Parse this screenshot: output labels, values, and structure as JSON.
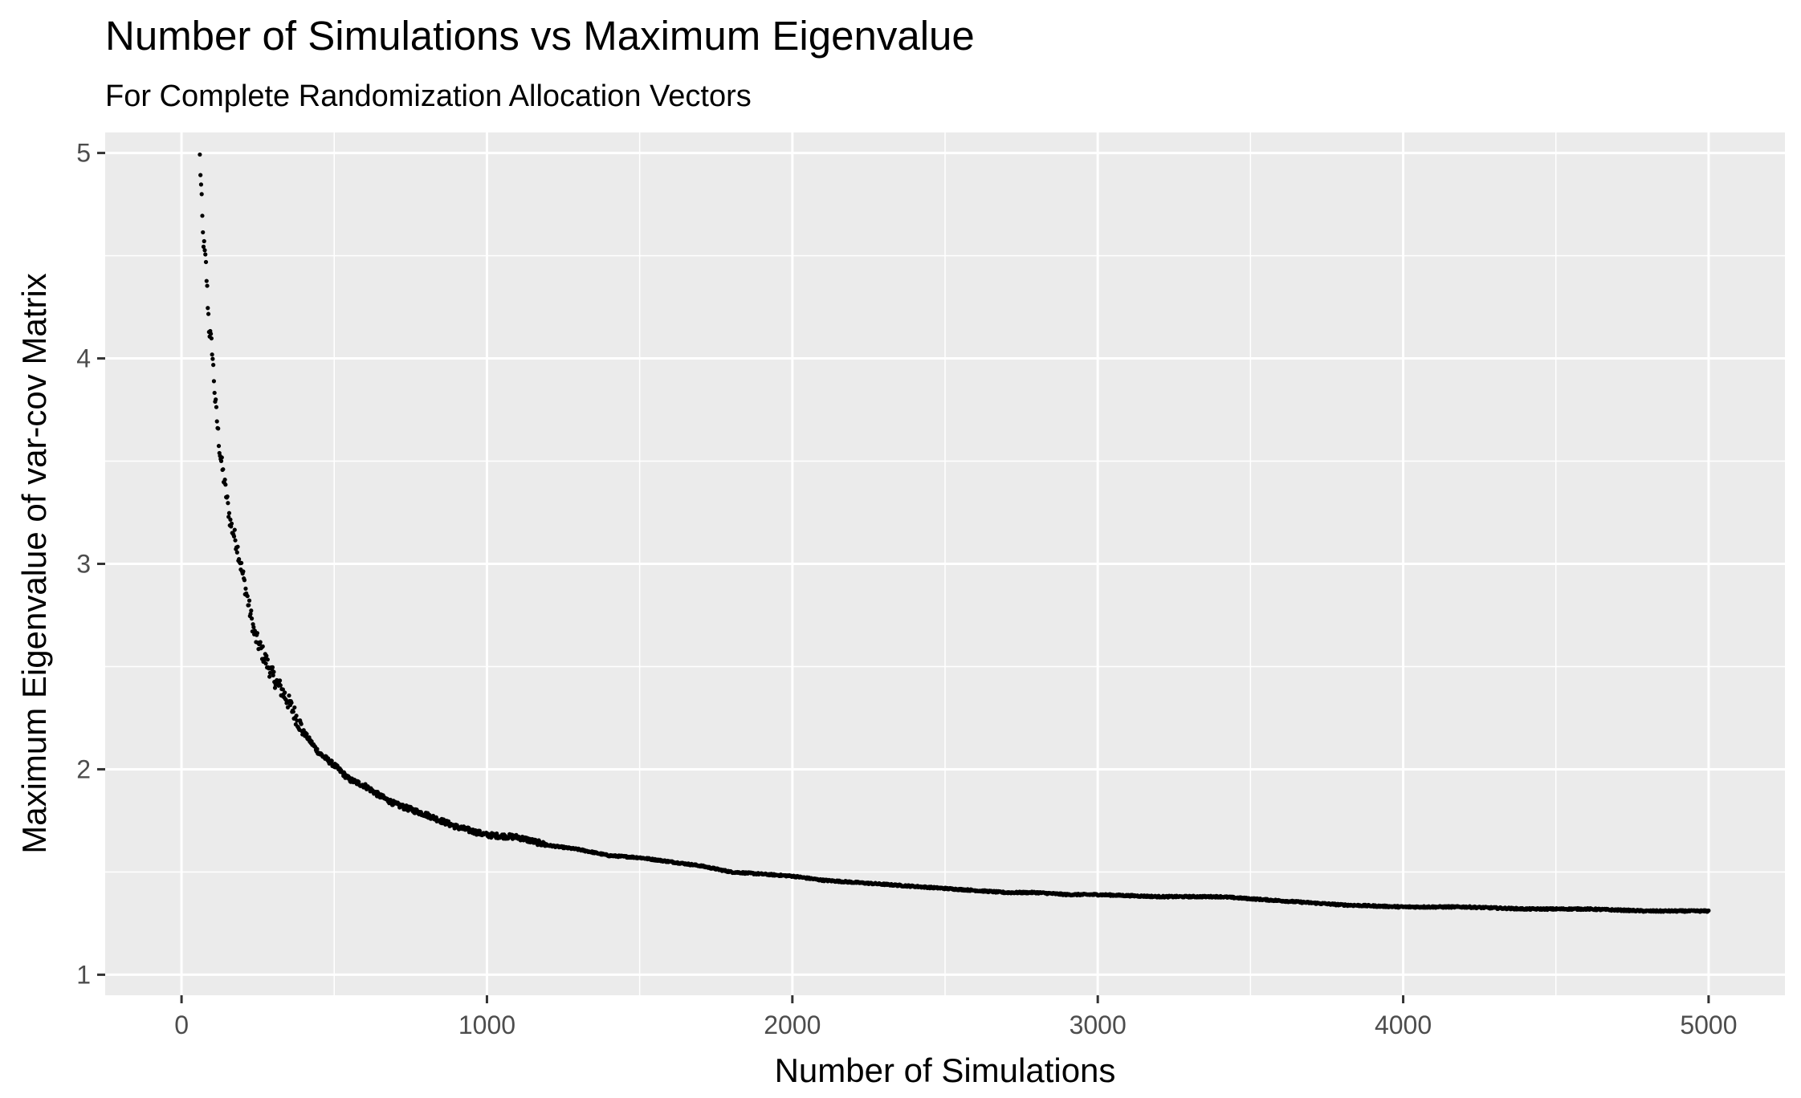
{
  "chart_data": {
    "type": "scatter",
    "title": "Number of Simulations vs Maximum Eigenvalue",
    "subtitle": "For Complete Randomization Allocation Vectors",
    "xlabel": "Number of Simulations",
    "ylabel": "Maximum Eigenvalue of var-cov Matrix",
    "xlim": [
      -250,
      5250
    ],
    "ylim": [
      0.9,
      5.1
    ],
    "x_ticks": [
      0,
      1000,
      2000,
      3000,
      4000,
      5000
    ],
    "x_tick_labels": [
      "0",
      "1000",
      "2000",
      "3000",
      "4000",
      "5000"
    ],
    "y_ticks": [
      1,
      2,
      3,
      4,
      5
    ],
    "y_tick_labels": [
      "1",
      "2",
      "3",
      "4",
      "5"
    ],
    "grid": true,
    "background": "#ebebeb",
    "grid_color": "#ffffff",
    "point_color": "#000000",
    "series": [
      {
        "x_start": 60,
        "x_end": 5000,
        "anchor_points": [
          [
            60,
            4.98
          ],
          [
            65,
            4.8
          ],
          [
            70,
            4.6
          ],
          [
            80,
            4.45
          ],
          [
            90,
            4.15
          ],
          [
            100,
            4.05
          ],
          [
            110,
            3.8
          ],
          [
            125,
            3.55
          ],
          [
            140,
            3.4
          ],
          [
            160,
            3.2
          ],
          [
            180,
            3.1
          ],
          [
            200,
            2.95
          ],
          [
            220,
            2.8
          ],
          [
            240,
            2.65
          ],
          [
            270,
            2.55
          ],
          [
            300,
            2.45
          ],
          [
            330,
            2.38
          ],
          [
            360,
            2.3
          ],
          [
            400,
            2.18
          ],
          [
            450,
            2.08
          ],
          [
            500,
            2.02
          ],
          [
            550,
            1.95
          ],
          [
            600,
            1.92
          ],
          [
            650,
            1.87
          ],
          [
            700,
            1.83
          ],
          [
            800,
            1.78
          ],
          [
            900,
            1.72
          ],
          [
            1000,
            1.68
          ],
          [
            1100,
            1.67
          ],
          [
            1200,
            1.63
          ],
          [
            1300,
            1.61
          ],
          [
            1400,
            1.58
          ],
          [
            1500,
            1.57
          ],
          [
            1600,
            1.55
          ],
          [
            1700,
            1.53
          ],
          [
            1800,
            1.5
          ],
          [
            1900,
            1.49
          ],
          [
            2000,
            1.48
          ],
          [
            2100,
            1.46
          ],
          [
            2200,
            1.45
          ],
          [
            2300,
            1.44
          ],
          [
            2400,
            1.43
          ],
          [
            2500,
            1.42
          ],
          [
            2600,
            1.41
          ],
          [
            2700,
            1.4
          ],
          [
            2800,
            1.4
          ],
          [
            2900,
            1.39
          ],
          [
            3000,
            1.39
          ],
          [
            3200,
            1.38
          ],
          [
            3400,
            1.38
          ],
          [
            3600,
            1.36
          ],
          [
            3800,
            1.34
          ],
          [
            4000,
            1.33
          ],
          [
            4200,
            1.33
          ],
          [
            4400,
            1.32
          ],
          [
            4600,
            1.32
          ],
          [
            4800,
            1.31
          ],
          [
            5000,
            1.31
          ]
        ]
      }
    ]
  }
}
